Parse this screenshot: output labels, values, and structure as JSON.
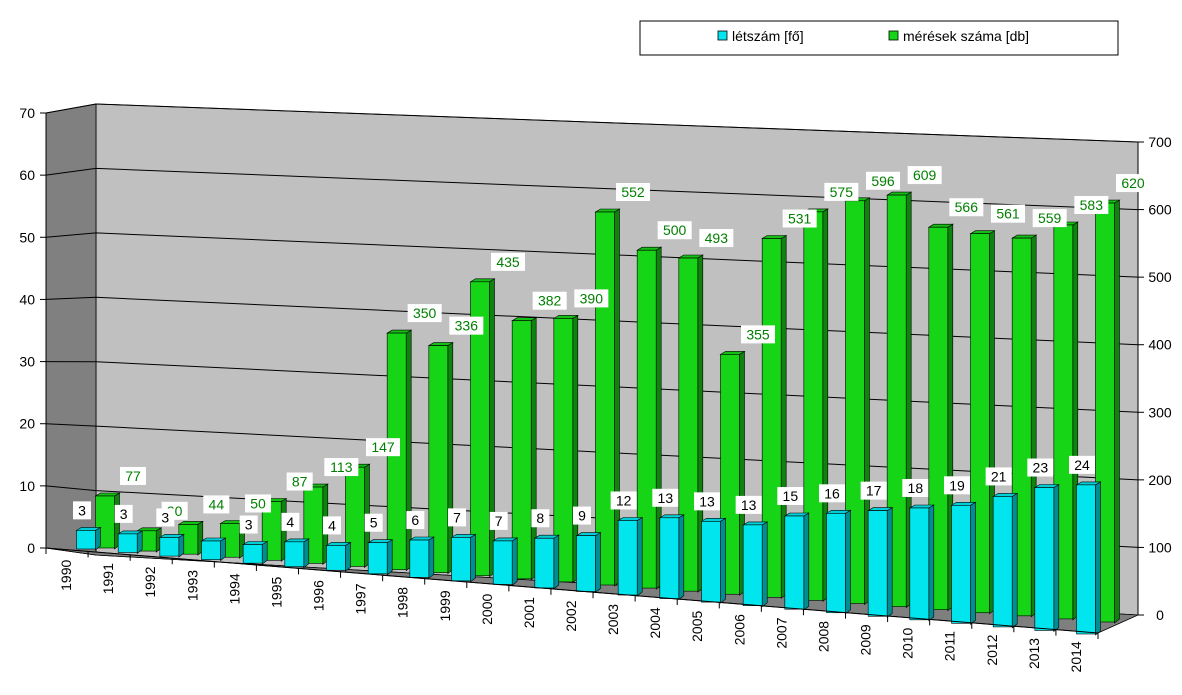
{
  "chart_data": {
    "type": "bar",
    "categories": [
      "1990",
      "1991",
      "1992",
      "1993",
      "1994",
      "1995",
      "1996",
      "1997",
      "1998",
      "1999",
      "2000",
      "2001",
      "2002",
      "2003",
      "2004",
      "2005",
      "2006",
      "2007",
      "2008",
      "2009",
      "2010",
      "2011",
      "2012",
      "2013",
      "2014"
    ],
    "series": [
      {
        "name": "létszám [fő]",
        "axis": "left",
        "color": "#00e5ee",
        "values": [
          3,
          3,
          3,
          3,
          3,
          4,
          4,
          5,
          6,
          7,
          7,
          8,
          9,
          12,
          13,
          13,
          13,
          15,
          16,
          17,
          18,
          19,
          21,
          23,
          24
        ]
      },
      {
        "name": "mérések száma [db]",
        "axis": "right",
        "color": "#16d416",
        "values": [
          77,
          30,
          44,
          50,
          87,
          113,
          147,
          350,
          336,
          435,
          382,
          390,
          552,
          500,
          493,
          355,
          531,
          575,
          596,
          609,
          566,
          561,
          559,
          583,
          620
        ]
      }
    ],
    "label_text": {
      "left": [
        "3",
        "3",
        "3",
        "",
        "3",
        "4",
        "4",
        "5",
        "6",
        "7",
        "7",
        "8",
        "9",
        "12",
        "13",
        "13",
        "13",
        "15",
        "16",
        "17",
        "18",
        "19",
        "21",
        "23",
        "24"
      ],
      "right": [
        "77",
        "30",
        "44",
        "50",
        "87",
        "113",
        "147",
        "350",
        "336",
        "435",
        "382",
        "390",
        "552",
        "500",
        "493",
        "355",
        "531",
        "575",
        "596",
        "609",
        "566",
        "561",
        "559",
        "583",
        "620"
      ]
    },
    "y_left": {
      "ticks": [
        0,
        10,
        20,
        30,
        40,
        50,
        60,
        70
      ],
      "ylim": [
        0,
        70
      ]
    },
    "y_right": {
      "ticks": [
        0,
        100,
        200,
        300,
        400,
        500,
        600,
        700
      ],
      "ylim": [
        0,
        700
      ]
    },
    "legend": {
      "placement": "top-right"
    },
    "grid": true,
    "style": "3d-clustered-column",
    "colors": {
      "wall": "#c0c0c0",
      "side_wall": "#808080",
      "floor": "#7f7f7f",
      "label_green": "#007f00"
    }
  }
}
